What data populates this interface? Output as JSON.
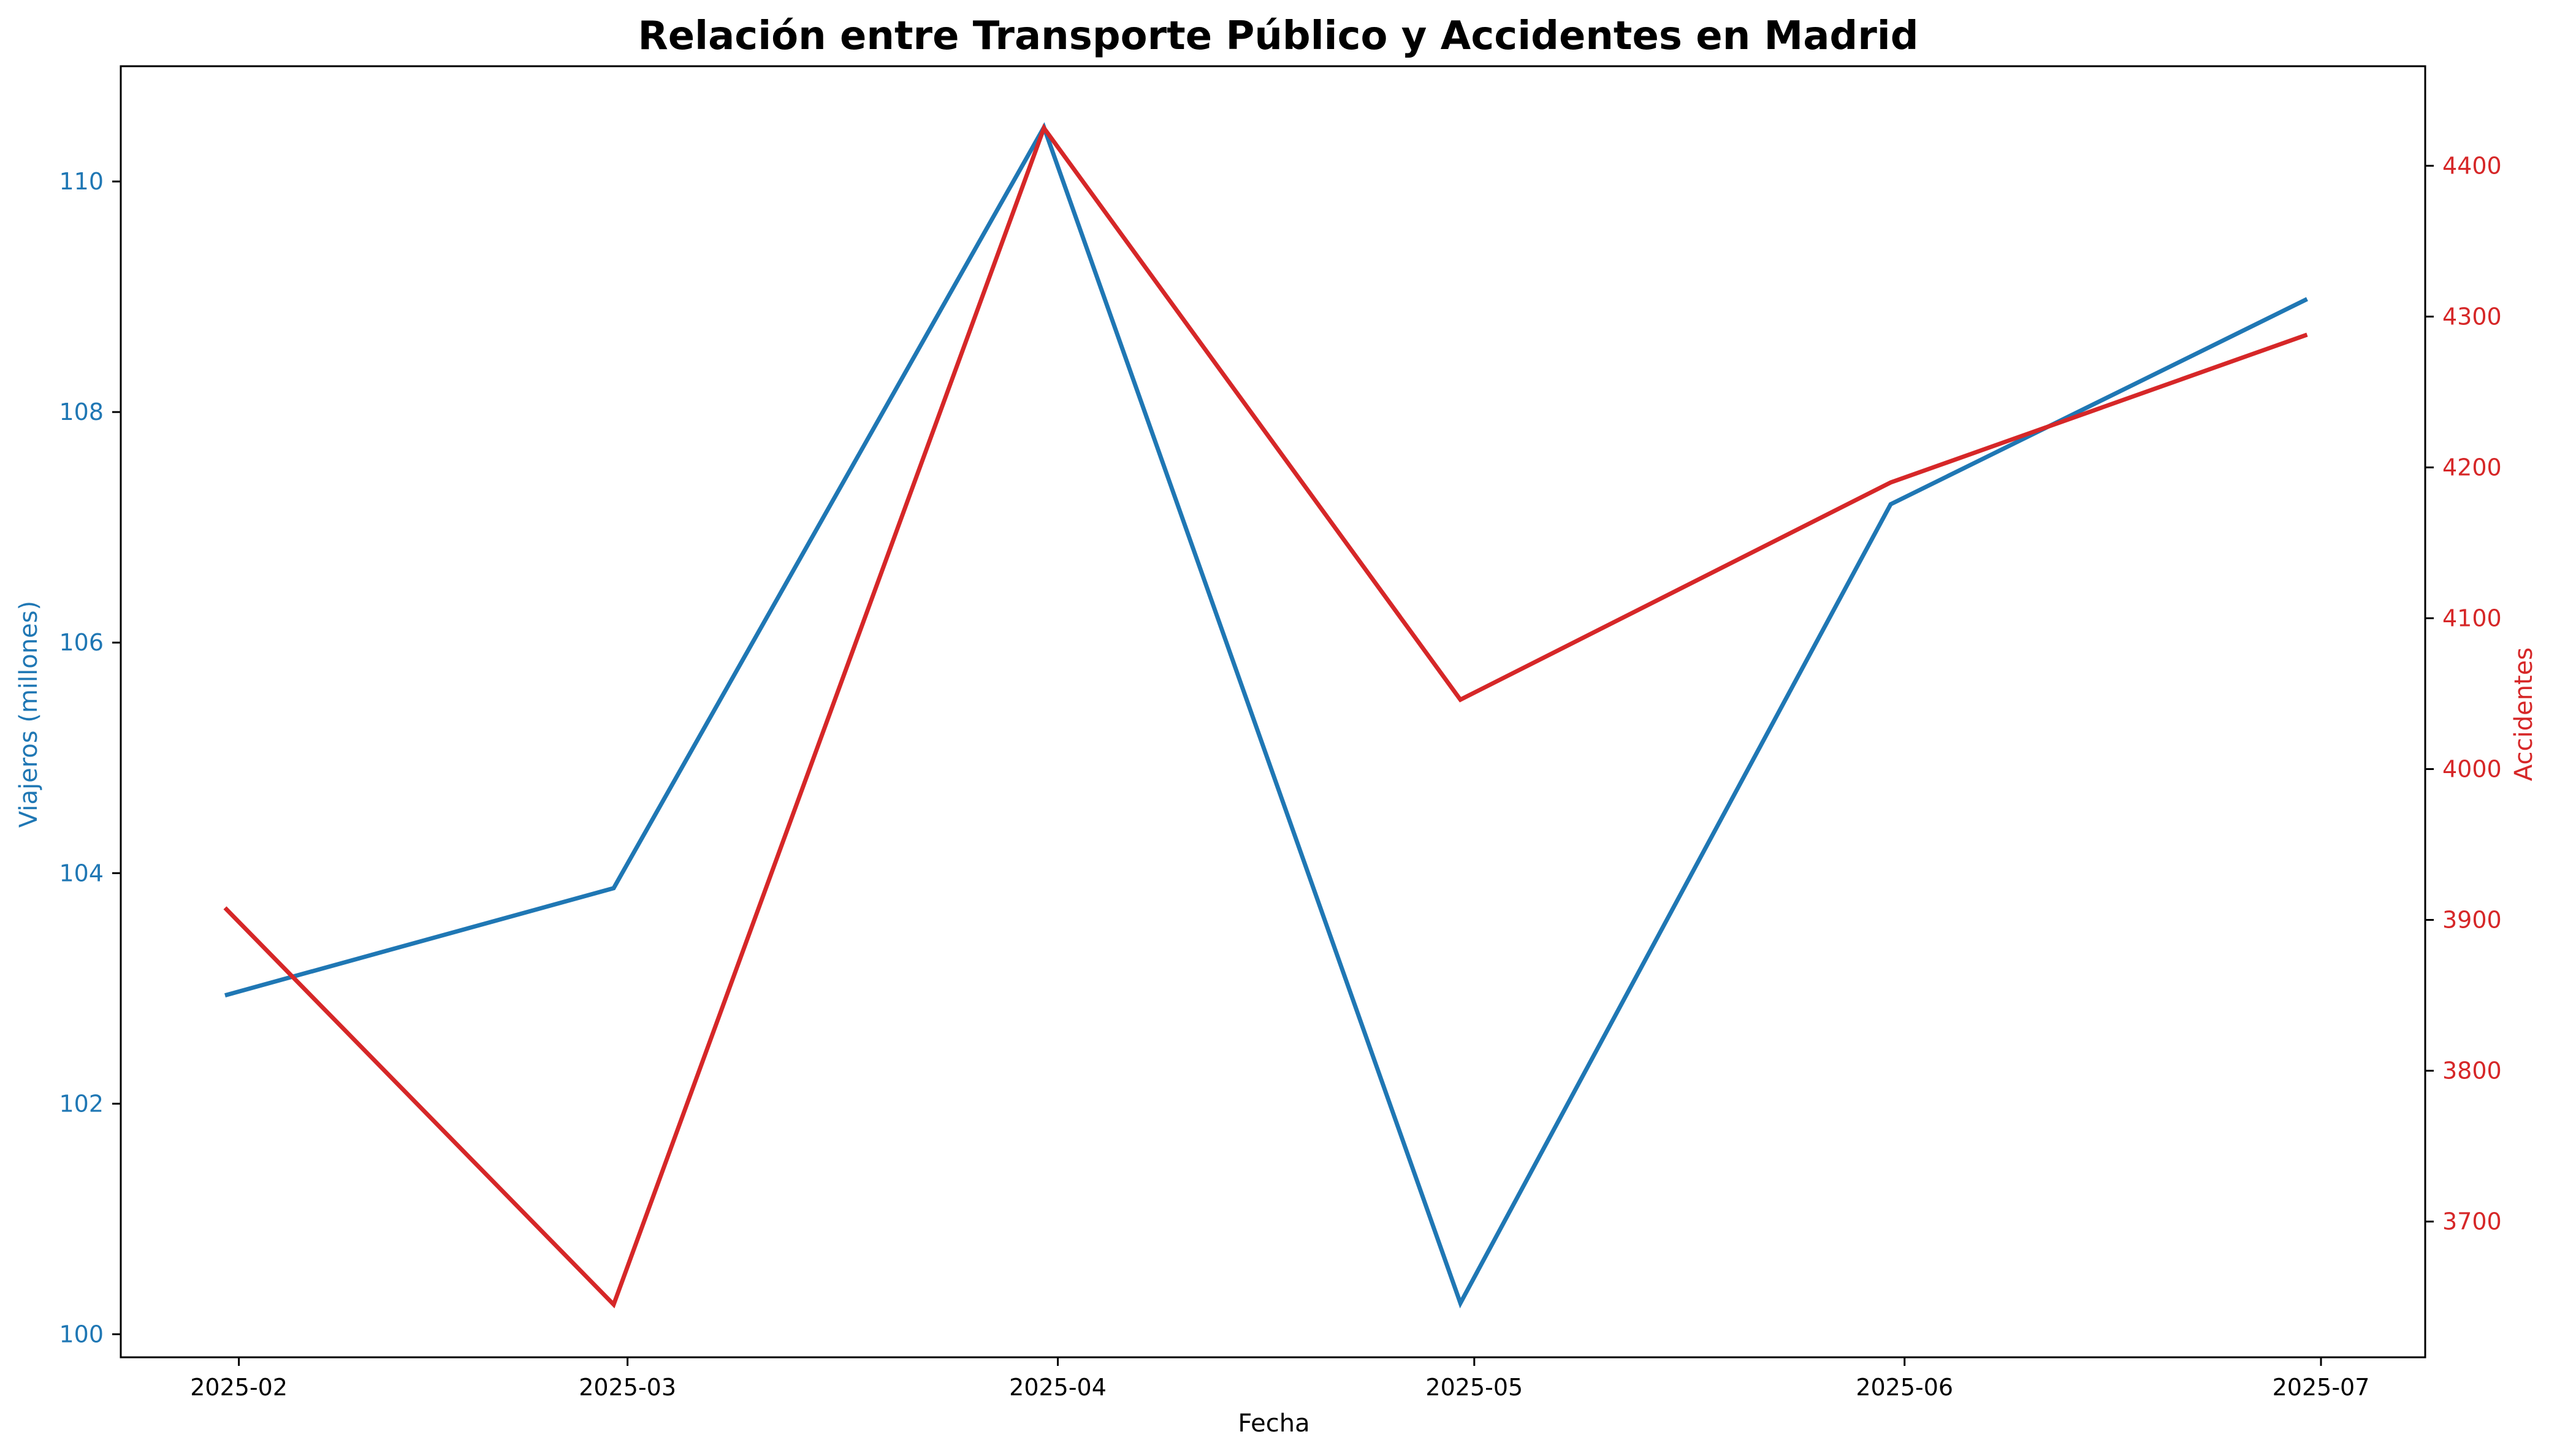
{
  "chart_data": {
    "type": "line",
    "title": "Relación entre Transporte Público y Accidentes en Madrid",
    "xlabel": "Fecha",
    "x_ticks": [
      "2025-02",
      "2025-03",
      "2025-04",
      "2025-05",
      "2025-06",
      "2025-07"
    ],
    "x_tick_dates": [
      "2025-02-01",
      "2025-03-01",
      "2025-04-01",
      "2025-05-01",
      "2025-06-01",
      "2025-07-01"
    ],
    "x": [
      "2025-01-31",
      "2025-02-28",
      "2025-03-31",
      "2025-04-30",
      "2025-05-31",
      "2025-06-30"
    ],
    "left_axis": {
      "label": "Viajeros (millones)",
      "color": "#1f77b4",
      "ylim": [
        99.8,
        111.0
      ],
      "ticks": [
        100,
        102,
        104,
        106,
        108,
        110
      ]
    },
    "right_axis": {
      "label": "Accidentes",
      "color": "#d62728",
      "ylim": [
        3610,
        4466
      ],
      "ticks": [
        3700,
        3800,
        3900,
        4000,
        4100,
        4200,
        4300,
        4400
      ]
    },
    "series": [
      {
        "axis": "left",
        "color": "#1f77b4",
        "values": [
          102.94,
          103.87,
          110.47,
          100.27,
          107.2,
          108.98
        ]
      },
      {
        "axis": "right",
        "color": "#d62728",
        "values": [
          3908,
          3645,
          4425,
          4046,
          4190,
          4288
        ]
      }
    ],
    "grid": false,
    "legend": "none"
  }
}
